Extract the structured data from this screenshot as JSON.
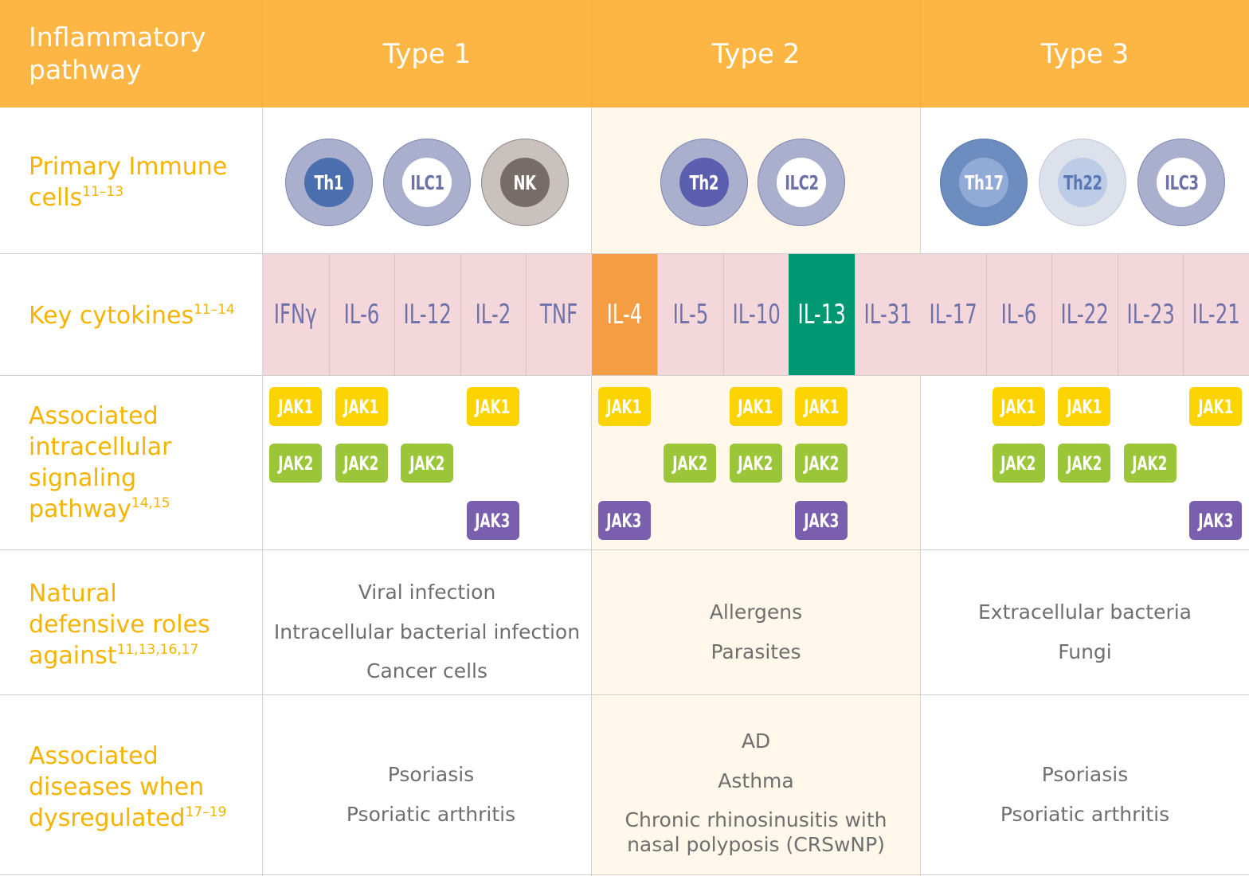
{
  "header": {
    "label": "Inflammatory pathway",
    "types": [
      {
        "label": "Type 1",
        "color": "#ffffff"
      },
      {
        "label": "Type 2",
        "color": "#ffffff"
      },
      {
        "label": "Type 3",
        "color": "#ffffff"
      }
    ]
  },
  "rows": {
    "cells": {
      "label": "Primary Immune cells",
      "refs": "11–13"
    },
    "cytokines": {
      "label": "Key cytokines",
      "refs": "11–14"
    },
    "signaling": {
      "label": "Associated intracellular signaling pathway",
      "refs": "14,15"
    },
    "roles": {
      "label": "Natural defensive roles against",
      "refs": "11,13,16,17"
    },
    "diseases": {
      "label": "Associated diseases when dysregulated",
      "refs": "17–19"
    }
  },
  "immune_cells": [
    {
      "label": "Th1"
    },
    {
      "label": "ILC1"
    },
    {
      "label": "NK"
    },
    {
      "label": "Th2"
    },
    {
      "label": "ILC2"
    },
    {
      "label": "Th17"
    },
    {
      "label": "Th22"
    },
    {
      "label": "ILC3"
    }
  ],
  "cytokines": [
    {
      "label": "IFNγ"
    },
    {
      "label": "IL-6"
    },
    {
      "label": "IL-12"
    },
    {
      "label": "IL-2"
    },
    {
      "label": "TNF"
    },
    {
      "label": "IL-4",
      "highlight": "#f59d43"
    },
    {
      "label": "IL-5"
    },
    {
      "label": "IL-10"
    },
    {
      "label": "IL-13",
      "highlight": "#009872"
    },
    {
      "label": "IL-31"
    },
    {
      "label": "IL-17"
    },
    {
      "label": "IL-6"
    },
    {
      "label": "IL-22"
    },
    {
      "label": "IL-23"
    },
    {
      "label": "IL-21"
    }
  ],
  "jak_labels": {
    "jak1": "JAK1",
    "jak2": "JAK2",
    "jak3": "JAK3"
  },
  "jak_colors": {
    "jak1": "#fbd400",
    "jak2": "#9cc63a",
    "jak3": "#7a5fae"
  },
  "jak_map": {
    "jak1": [
      true,
      true,
      false,
      true,
      false,
      true,
      false,
      true,
      true,
      false,
      false,
      true,
      true,
      false,
      true
    ],
    "jak2": [
      true,
      true,
      true,
      false,
      false,
      false,
      true,
      true,
      true,
      false,
      false,
      true,
      true,
      true,
      false
    ],
    "jak3": [
      false,
      false,
      false,
      true,
      false,
      true,
      false,
      false,
      true,
      false,
      false,
      false,
      false,
      false,
      true
    ]
  },
  "roles": {
    "type1": [
      "Viral infection",
      "Intracellular bacterial infection",
      "Cancer cells"
    ],
    "type2": [
      "Allergens",
      "Parasites"
    ],
    "type3": [
      "Extracellular bacteria",
      "Fungi"
    ]
  },
  "diseases": {
    "type1": [
      "Psoriasis",
      "Psoriatic arthritis"
    ],
    "type2": [
      "AD",
      "Asthma",
      "Chronic rhinosinusitis with",
      "nasal polyposis (CRSwNP)"
    ],
    "type3": [
      "Psoriasis",
      "Psoriatic arthritis"
    ]
  }
}
